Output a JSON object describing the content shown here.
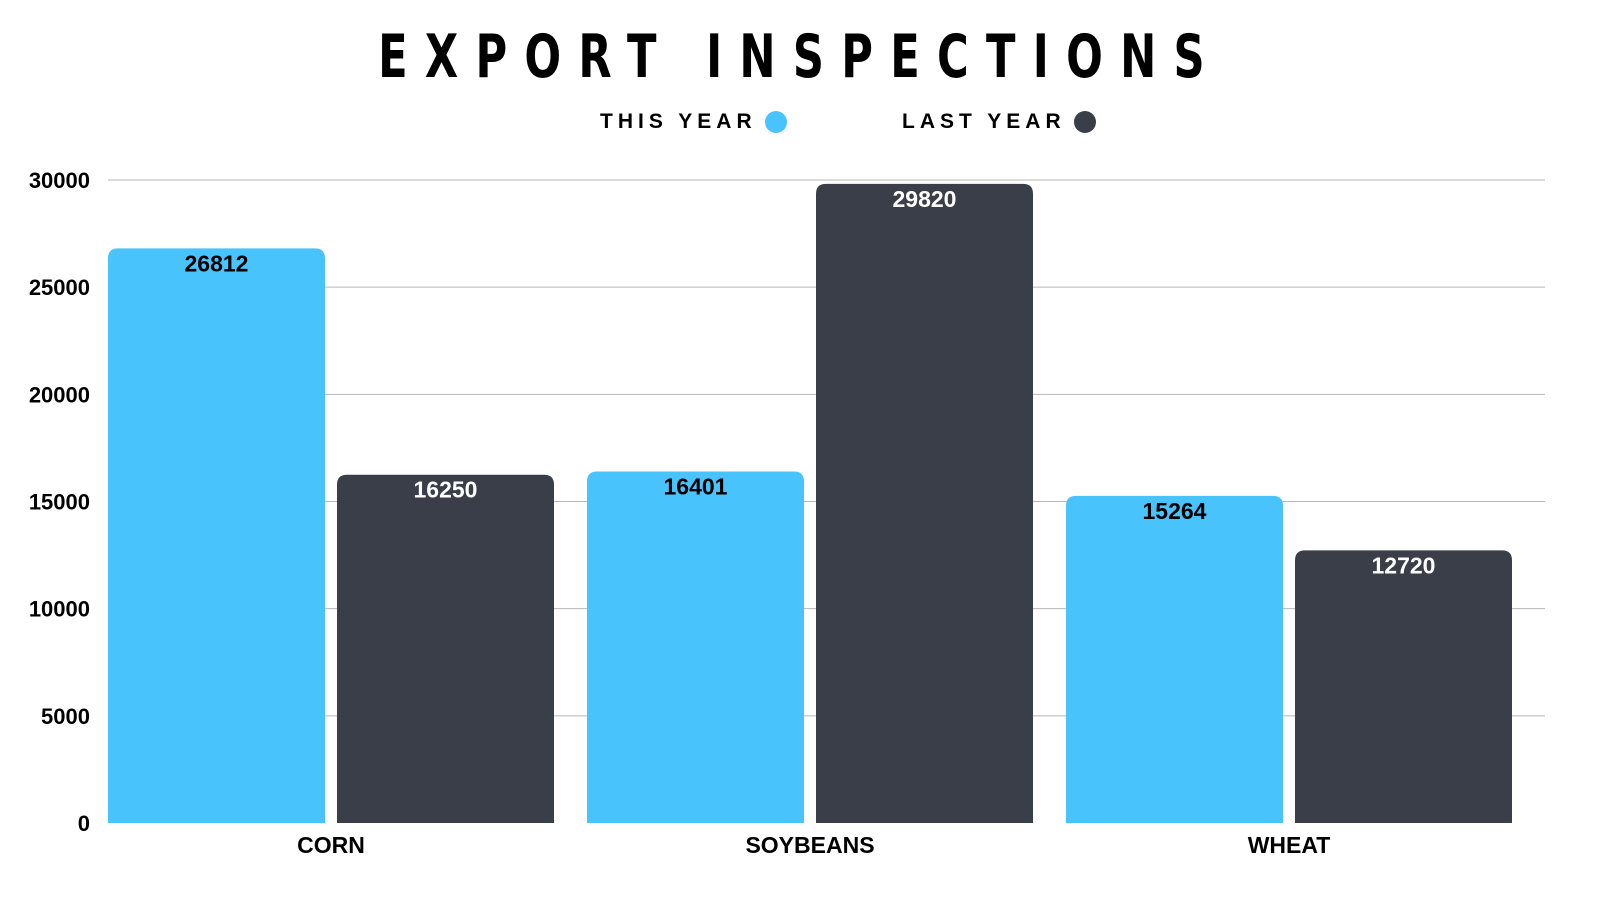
{
  "chart_data": {
    "type": "bar",
    "title": "EXPORT INSPECTIONS",
    "xlabel": "",
    "ylabel": "",
    "categories": [
      "CORN",
      "SOYBEANS",
      "WHEAT"
    ],
    "series": [
      {
        "name": "THIS YEAR",
        "color": "#48c3fb",
        "label_color": "#000000",
        "values": [
          26812,
          16401,
          15264
        ]
      },
      {
        "name": "LAST YEAR",
        "color": "#3a3e48",
        "label_color": "#ffffff",
        "values": [
          16250,
          29820,
          12720
        ]
      }
    ],
    "ylim": [
      0,
      30000
    ],
    "yticks": [
      "0",
      "5000",
      "10000",
      "15000",
      "20000",
      "25000",
      "30000"
    ],
    "grid": true,
    "legend_position": "top-center"
  }
}
